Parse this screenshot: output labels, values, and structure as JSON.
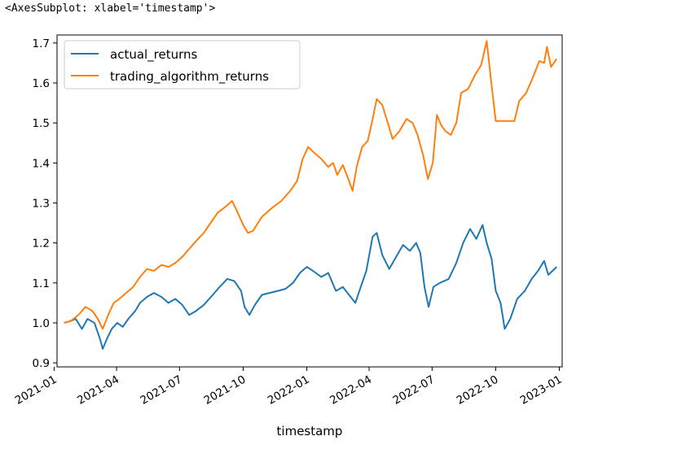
{
  "output_repr": "<AxesSubplot: xlabel='timestamp'>",
  "chart_data": {
    "type": "line",
    "xlabel": "timestamp",
    "ylabel": "",
    "ylim": [
      0.89,
      1.72
    ],
    "xlim": [
      "2021-01-05",
      "2023-01-05"
    ],
    "grid": false,
    "legend_position": "upper-left",
    "y_ticks": [
      0.9,
      1.0,
      1.1,
      1.2,
      1.3,
      1.4,
      1.5,
      1.6,
      1.7
    ],
    "y_tick_labels": [
      "0.9",
      "1.0",
      "1.1",
      "1.2",
      "1.3",
      "1.4",
      "1.5",
      "1.6",
      "1.7"
    ],
    "x_ticks": [
      "2021-01-01",
      "2021-04-01",
      "2021-07-01",
      "2021-10-01",
      "2022-01-01",
      "2022-04-01",
      "2022-07-01",
      "2022-10-01",
      "2023-01-01"
    ],
    "x_tick_labels": [
      "2021-01",
      "2021-04",
      "2021-07",
      "2021-10",
      "2022-01",
      "2022-04",
      "2022-07",
      "2022-10",
      "2023-01"
    ],
    "series": [
      {
        "name": "actual_returns",
        "color": "#1f77b4",
        "points": [
          [
            "2021-01-15",
            1.0
          ],
          [
            "2021-01-25",
            1.005
          ],
          [
            "2021-02-01",
            1.01
          ],
          [
            "2021-02-10",
            0.985
          ],
          [
            "2021-02-18",
            1.01
          ],
          [
            "2021-02-28",
            1.0
          ],
          [
            "2021-03-08",
            0.96
          ],
          [
            "2021-03-12",
            0.935
          ],
          [
            "2021-03-18",
            0.96
          ],
          [
            "2021-03-25",
            0.985
          ],
          [
            "2021-04-02",
            1.0
          ],
          [
            "2021-04-10",
            0.99
          ],
          [
            "2021-04-18",
            1.01
          ],
          [
            "2021-04-28",
            1.03
          ],
          [
            "2021-05-05",
            1.05
          ],
          [
            "2021-05-15",
            1.065
          ],
          [
            "2021-05-25",
            1.075
          ],
          [
            "2021-06-05",
            1.065
          ],
          [
            "2021-06-15",
            1.05
          ],
          [
            "2021-06-25",
            1.06
          ],
          [
            "2021-07-05",
            1.045
          ],
          [
            "2021-07-15",
            1.02
          ],
          [
            "2021-07-25",
            1.03
          ],
          [
            "2021-08-05",
            1.045
          ],
          [
            "2021-08-18",
            1.07
          ],
          [
            "2021-08-28",
            1.09
          ],
          [
            "2021-09-08",
            1.11
          ],
          [
            "2021-09-18",
            1.105
          ],
          [
            "2021-09-28",
            1.08
          ],
          [
            "2021-10-03",
            1.04
          ],
          [
            "2021-10-10",
            1.02
          ],
          [
            "2021-10-18",
            1.045
          ],
          [
            "2021-10-28",
            1.07
          ],
          [
            "2021-11-08",
            1.075
          ],
          [
            "2021-11-20",
            1.08
          ],
          [
            "2021-12-01",
            1.085
          ],
          [
            "2021-12-12",
            1.1
          ],
          [
            "2021-12-22",
            1.125
          ],
          [
            "2022-01-01",
            1.14
          ],
          [
            "2022-01-10",
            1.13
          ],
          [
            "2022-01-22",
            1.115
          ],
          [
            "2022-02-01",
            1.125
          ],
          [
            "2022-02-12",
            1.08
          ],
          [
            "2022-02-22",
            1.09
          ],
          [
            "2022-03-03",
            1.07
          ],
          [
            "2022-03-12",
            1.05
          ],
          [
            "2022-03-20",
            1.09
          ],
          [
            "2022-03-28",
            1.13
          ],
          [
            "2022-04-06",
            1.215
          ],
          [
            "2022-04-12",
            1.225
          ],
          [
            "2022-04-20",
            1.17
          ],
          [
            "2022-04-30",
            1.135
          ],
          [
            "2022-05-10",
            1.165
          ],
          [
            "2022-05-20",
            1.195
          ],
          [
            "2022-05-30",
            1.18
          ],
          [
            "2022-06-08",
            1.2
          ],
          [
            "2022-06-14",
            1.175
          ],
          [
            "2022-06-20",
            1.09
          ],
          [
            "2022-06-26",
            1.04
          ],
          [
            "2022-07-03",
            1.09
          ],
          [
            "2022-07-12",
            1.1
          ],
          [
            "2022-07-25",
            1.11
          ],
          [
            "2022-08-05",
            1.15
          ],
          [
            "2022-08-15",
            1.2
          ],
          [
            "2022-08-25",
            1.235
          ],
          [
            "2022-09-03",
            1.21
          ],
          [
            "2022-09-12",
            1.245
          ],
          [
            "2022-09-18",
            1.2
          ],
          [
            "2022-09-25",
            1.16
          ],
          [
            "2022-10-01",
            1.08
          ],
          [
            "2022-10-08",
            1.05
          ],
          [
            "2022-10-14",
            0.985
          ],
          [
            "2022-10-22",
            1.01
          ],
          [
            "2022-11-01",
            1.06
          ],
          [
            "2022-11-12",
            1.08
          ],
          [
            "2022-11-22",
            1.11
          ],
          [
            "2022-12-01",
            1.13
          ],
          [
            "2022-12-10",
            1.155
          ],
          [
            "2022-12-16",
            1.12
          ],
          [
            "2022-12-22",
            1.13
          ],
          [
            "2022-12-28",
            1.14
          ]
        ]
      },
      {
        "name": "trading_algorithm_returns",
        "color": "#ff7f0e",
        "points": [
          [
            "2021-01-15",
            1.0
          ],
          [
            "2021-01-25",
            1.005
          ],
          [
            "2021-02-05",
            1.02
          ],
          [
            "2021-02-15",
            1.04
          ],
          [
            "2021-02-25",
            1.03
          ],
          [
            "2021-03-05",
            1.01
          ],
          [
            "2021-03-12",
            0.985
          ],
          [
            "2021-03-20",
            1.02
          ],
          [
            "2021-03-28",
            1.05
          ],
          [
            "2021-04-05",
            1.06
          ],
          [
            "2021-04-15",
            1.075
          ],
          [
            "2021-04-25",
            1.09
          ],
          [
            "2021-05-05",
            1.115
          ],
          [
            "2021-05-15",
            1.135
          ],
          [
            "2021-05-25",
            1.13
          ],
          [
            "2021-06-05",
            1.145
          ],
          [
            "2021-06-15",
            1.14
          ],
          [
            "2021-06-25",
            1.15
          ],
          [
            "2021-07-05",
            1.165
          ],
          [
            "2021-07-15",
            1.185
          ],
          [
            "2021-07-25",
            1.205
          ],
          [
            "2021-08-05",
            1.225
          ],
          [
            "2021-08-15",
            1.25
          ],
          [
            "2021-08-25",
            1.275
          ],
          [
            "2021-09-05",
            1.29
          ],
          [
            "2021-09-15",
            1.305
          ],
          [
            "2021-09-22",
            1.28
          ],
          [
            "2021-10-01",
            1.245
          ],
          [
            "2021-10-08",
            1.225
          ],
          [
            "2021-10-15",
            1.23
          ],
          [
            "2021-10-28",
            1.265
          ],
          [
            "2021-11-10",
            1.285
          ],
          [
            "2021-11-25",
            1.305
          ],
          [
            "2021-12-08",
            1.33
          ],
          [
            "2021-12-18",
            1.355
          ],
          [
            "2021-12-26",
            1.41
          ],
          [
            "2022-01-03",
            1.44
          ],
          [
            "2022-01-12",
            1.425
          ],
          [
            "2022-01-22",
            1.41
          ],
          [
            "2022-02-01",
            1.39
          ],
          [
            "2022-02-08",
            1.4
          ],
          [
            "2022-02-14",
            1.37
          ],
          [
            "2022-02-22",
            1.395
          ],
          [
            "2022-03-02",
            1.36
          ],
          [
            "2022-03-08",
            1.33
          ],
          [
            "2022-03-14",
            1.39
          ],
          [
            "2022-03-22",
            1.44
          ],
          [
            "2022-03-30",
            1.455
          ],
          [
            "2022-04-05",
            1.5
          ],
          [
            "2022-04-12",
            1.56
          ],
          [
            "2022-04-20",
            1.545
          ],
          [
            "2022-04-28",
            1.5
          ],
          [
            "2022-05-05",
            1.46
          ],
          [
            "2022-05-15",
            1.48
          ],
          [
            "2022-05-25",
            1.51
          ],
          [
            "2022-06-03",
            1.5
          ],
          [
            "2022-06-10",
            1.47
          ],
          [
            "2022-06-18",
            1.42
          ],
          [
            "2022-06-25",
            1.36
          ],
          [
            "2022-07-02",
            1.4
          ],
          [
            "2022-07-08",
            1.52
          ],
          [
            "2022-07-14",
            1.495
          ],
          [
            "2022-07-20",
            1.48
          ],
          [
            "2022-07-28",
            1.47
          ],
          [
            "2022-08-05",
            1.5
          ],
          [
            "2022-08-12",
            1.575
          ],
          [
            "2022-08-22",
            1.585
          ],
          [
            "2022-09-01",
            1.62
          ],
          [
            "2022-09-10",
            1.645
          ],
          [
            "2022-09-18",
            1.705
          ],
          [
            "2022-09-24",
            1.61
          ],
          [
            "2022-10-01",
            1.505
          ],
          [
            "2022-10-10",
            1.505
          ],
          [
            "2022-10-20",
            1.505
          ],
          [
            "2022-10-28",
            1.505
          ],
          [
            "2022-11-04",
            1.555
          ],
          [
            "2022-11-14",
            1.575
          ],
          [
            "2022-11-24",
            1.615
          ],
          [
            "2022-12-03",
            1.655
          ],
          [
            "2022-12-10",
            1.65
          ],
          [
            "2022-12-14",
            1.69
          ],
          [
            "2022-12-20",
            1.64
          ],
          [
            "2022-12-28",
            1.66
          ]
        ]
      }
    ]
  }
}
